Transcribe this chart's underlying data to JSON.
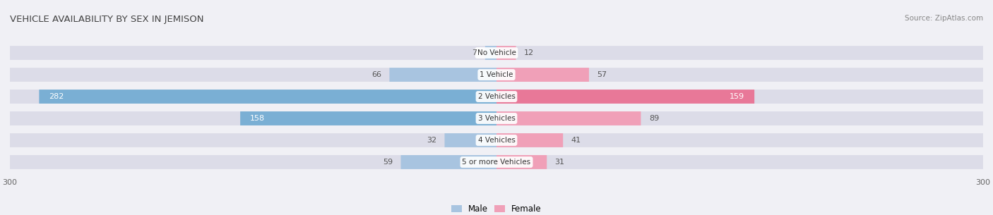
{
  "title": "VEHICLE AVAILABILITY BY SEX IN JEMISON",
  "source": "Source: ZipAtlas.com",
  "categories": [
    "No Vehicle",
    "1 Vehicle",
    "2 Vehicles",
    "3 Vehicles",
    "4 Vehicles",
    "5 or more Vehicles"
  ],
  "male_values": [
    7,
    66,
    282,
    158,
    32,
    59
  ],
  "female_values": [
    12,
    57,
    159,
    89,
    41,
    31
  ],
  "male_color": "#a8c4e0",
  "female_color": "#f0a0b8",
  "male_color_large": "#7aafd4",
  "female_color_large": "#e87898",
  "x_max": 300,
  "figsize": [
    14.06,
    3.05
  ],
  "dpi": 100
}
